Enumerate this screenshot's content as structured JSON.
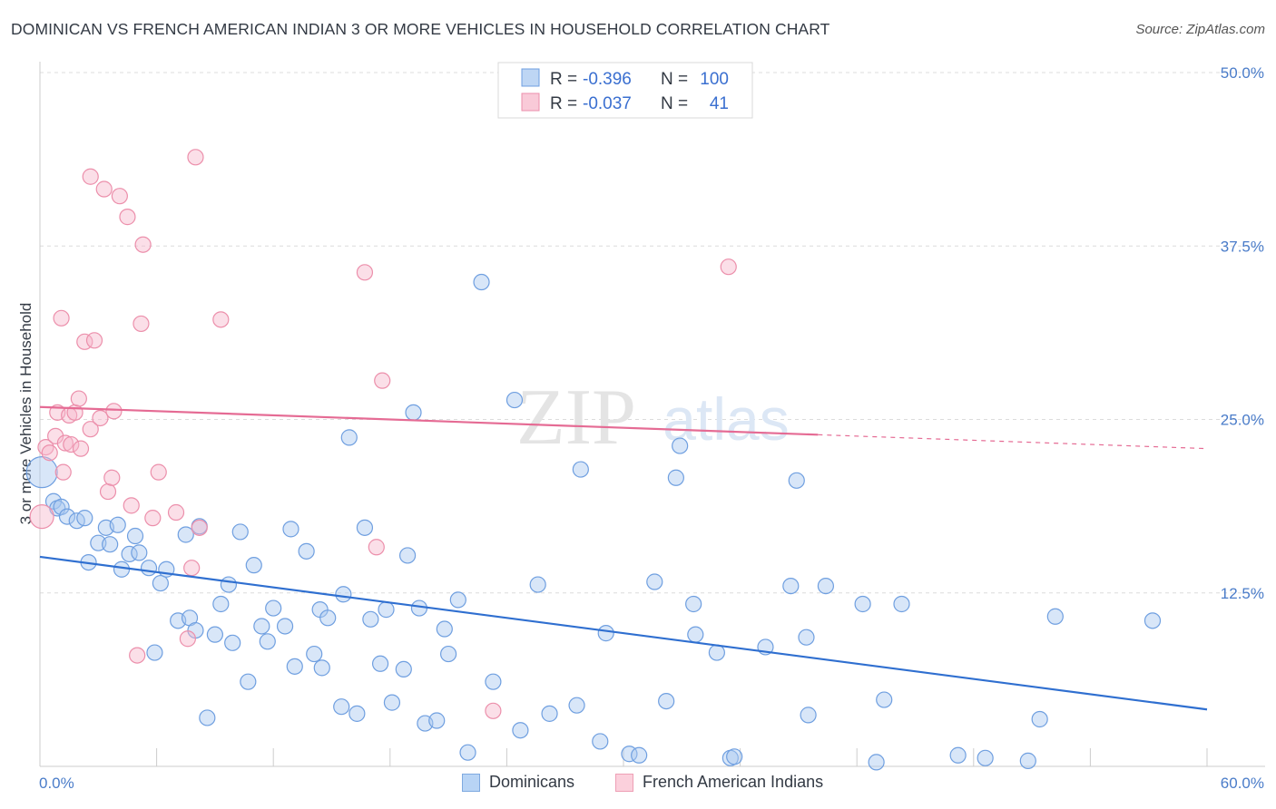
{
  "title": "DOMINICAN VS FRENCH AMERICAN INDIAN 3 OR MORE VEHICLES IN HOUSEHOLD CORRELATION CHART",
  "source": "Source: ZipAtlas.com",
  "watermark": {
    "zip": "ZIP",
    "atlas": "atlas"
  },
  "legend": {
    "rows": [
      {
        "r_label": "R =",
        "r_value": "-0.396",
        "n_label": "N =",
        "n_value": "100",
        "color": "#a8c8f0",
        "stroke": "#6f9fe0"
      },
      {
        "r_label": "R =",
        "r_value": "-0.037",
        "n_label": "N =",
        "n_value": "41",
        "color": "#f7b8cb",
        "stroke": "#ec8fab"
      }
    ]
  },
  "bottom_legend": [
    {
      "label": "Dominicans",
      "color": "#b8d4f5",
      "stroke": "#7fa9e0"
    },
    {
      "label": "French American Indians",
      "color": "#fbd0dc",
      "stroke": "#ee9fb5"
    }
  ],
  "chart_data": {
    "type": "scatter",
    "title": "DOMINICAN VS FRENCH AMERICAN INDIAN 3 OR MORE VEHICLES IN HOUSEHOLD CORRELATION CHART",
    "xlabel": "",
    "ylabel": "3 or more Vehicles in Household",
    "xlim": [
      0,
      60
    ],
    "ylim": [
      0,
      50
    ],
    "x_tick_labels": [
      "0.0%",
      "60.0%"
    ],
    "y_ticks": [
      12.5,
      25.0,
      37.5,
      50.0
    ],
    "y_tick_labels": [
      "12.5%",
      "25.0%",
      "37.5%",
      "50.0%"
    ],
    "grid": true,
    "legend_position": "top-center",
    "series": [
      {
        "name": "Dominicans",
        "color": "#a8c8f0",
        "stroke": "#6f9fe0",
        "trend": {
          "x0": 0,
          "y0": 15.1,
          "x1": 60,
          "y1": 4.1,
          "color": "#2f6fd0"
        },
        "points": [
          [
            0.1,
            21.2
          ],
          [
            0.7,
            19.1
          ],
          [
            0.9,
            18.6
          ],
          [
            1.1,
            18.7
          ],
          [
            1.4,
            18.0
          ],
          [
            1.9,
            17.7
          ],
          [
            2.3,
            17.9
          ],
          [
            2.5,
            14.7
          ],
          [
            3.0,
            16.1
          ],
          [
            3.4,
            17.2
          ],
          [
            3.6,
            16.0
          ],
          [
            4.0,
            17.4
          ],
          [
            4.2,
            14.2
          ],
          [
            4.6,
            15.3
          ],
          [
            4.9,
            16.6
          ],
          [
            5.1,
            15.4
          ],
          [
            5.6,
            14.3
          ],
          [
            6.2,
            13.2
          ],
          [
            6.5,
            14.2
          ],
          [
            5.9,
            8.2
          ],
          [
            7.1,
            10.5
          ],
          [
            7.5,
            16.7
          ],
          [
            7.7,
            10.7
          ],
          [
            8.0,
            9.8
          ],
          [
            8.2,
            17.3
          ],
          [
            8.6,
            3.5
          ],
          [
            9.0,
            9.5
          ],
          [
            9.3,
            11.7
          ],
          [
            9.7,
            13.1
          ],
          [
            9.9,
            8.9
          ],
          [
            10.3,
            16.9
          ],
          [
            10.7,
            6.1
          ],
          [
            11.0,
            14.5
          ],
          [
            11.4,
            10.1
          ],
          [
            11.7,
            9.0
          ],
          [
            12.0,
            11.4
          ],
          [
            12.6,
            10.1
          ],
          [
            12.9,
            17.1
          ],
          [
            13.1,
            7.2
          ],
          [
            13.7,
            15.5
          ],
          [
            14.1,
            8.1
          ],
          [
            14.4,
            11.3
          ],
          [
            14.8,
            10.7
          ],
          [
            14.5,
            7.1
          ],
          [
            15.5,
            4.3
          ],
          [
            15.6,
            12.4
          ],
          [
            15.9,
            23.7
          ],
          [
            16.3,
            3.8
          ],
          [
            16.7,
            17.2
          ],
          [
            17.0,
            10.6
          ],
          [
            17.5,
            7.4
          ],
          [
            17.8,
            11.3
          ],
          [
            18.1,
            4.6
          ],
          [
            18.7,
            7.0
          ],
          [
            18.9,
            15.2
          ],
          [
            19.2,
            25.5
          ],
          [
            19.5,
            11.4
          ],
          [
            19.8,
            3.1
          ],
          [
            20.4,
            3.3
          ],
          [
            20.8,
            9.9
          ],
          [
            21.0,
            8.1
          ],
          [
            21.5,
            12.0
          ],
          [
            22.0,
            1.0
          ],
          [
            22.7,
            34.9
          ],
          [
            23.3,
            6.1
          ],
          [
            24.4,
            26.4
          ],
          [
            24.7,
            2.6
          ],
          [
            25.6,
            13.1
          ],
          [
            26.2,
            3.8
          ],
          [
            27.6,
            4.4
          ],
          [
            27.8,
            21.4
          ],
          [
            28.8,
            1.8
          ],
          [
            29.1,
            9.6
          ],
          [
            30.3,
            0.9
          ],
          [
            30.8,
            0.8
          ],
          [
            31.6,
            13.3
          ],
          [
            32.2,
            4.7
          ],
          [
            32.9,
            23.1
          ],
          [
            32.7,
            20.8
          ],
          [
            33.6,
            11.7
          ],
          [
            33.7,
            9.5
          ],
          [
            34.8,
            8.2
          ],
          [
            35.5,
            0.6
          ],
          [
            35.7,
            0.7
          ],
          [
            37.3,
            8.6
          ],
          [
            38.6,
            13.0
          ],
          [
            38.9,
            20.6
          ],
          [
            39.4,
            9.3
          ],
          [
            39.5,
            3.7
          ],
          [
            40.4,
            13.0
          ],
          [
            42.3,
            11.7
          ],
          [
            43.0,
            0.3
          ],
          [
            43.4,
            4.8
          ],
          [
            44.3,
            11.7
          ],
          [
            47.2,
            0.8
          ],
          [
            48.6,
            0.6
          ],
          [
            50.8,
            0.4
          ],
          [
            51.4,
            3.4
          ],
          [
            52.2,
            10.8
          ],
          [
            57.2,
            10.5
          ]
        ]
      },
      {
        "name": "French American Indians",
        "color": "#f7b8cb",
        "stroke": "#ec8fab",
        "trend": {
          "x0": 0,
          "y0": 25.9,
          "x1": 40,
          "y1": 23.9,
          "dash_to_x": 60,
          "dash_to_y": 22.9,
          "color": "#e56b94"
        },
        "points": [
          [
            0.1,
            18.0
          ],
          [
            0.3,
            23.0
          ],
          [
            0.5,
            22.6
          ],
          [
            0.8,
            23.8
          ],
          [
            0.9,
            25.5
          ],
          [
            1.1,
            32.3
          ],
          [
            1.2,
            21.2
          ],
          [
            1.3,
            23.3
          ],
          [
            1.5,
            25.3
          ],
          [
            1.6,
            23.2
          ],
          [
            1.8,
            25.5
          ],
          [
            2.0,
            26.5
          ],
          [
            2.1,
            22.9
          ],
          [
            2.3,
            30.6
          ],
          [
            2.6,
            24.3
          ],
          [
            2.6,
            42.5
          ],
          [
            2.8,
            30.7
          ],
          [
            3.1,
            25.1
          ],
          [
            3.3,
            41.6
          ],
          [
            3.5,
            19.8
          ],
          [
            3.7,
            20.8
          ],
          [
            3.8,
            25.6
          ],
          [
            4.1,
            41.1
          ],
          [
            4.5,
            39.6
          ],
          [
            4.7,
            18.8
          ],
          [
            5.0,
            8.0
          ],
          [
            5.2,
            31.9
          ],
          [
            5.3,
            37.6
          ],
          [
            5.8,
            17.9
          ],
          [
            6.1,
            21.2
          ],
          [
            7.0,
            18.3
          ],
          [
            7.6,
            9.2
          ],
          [
            7.8,
            14.3
          ],
          [
            8.0,
            43.9
          ],
          [
            8.2,
            17.2
          ],
          [
            9.3,
            32.2
          ],
          [
            16.7,
            35.6
          ],
          [
            17.3,
            15.8
          ],
          [
            17.6,
            27.8
          ],
          [
            23.3,
            4.0
          ],
          [
            35.4,
            36.0
          ]
        ]
      }
    ]
  }
}
